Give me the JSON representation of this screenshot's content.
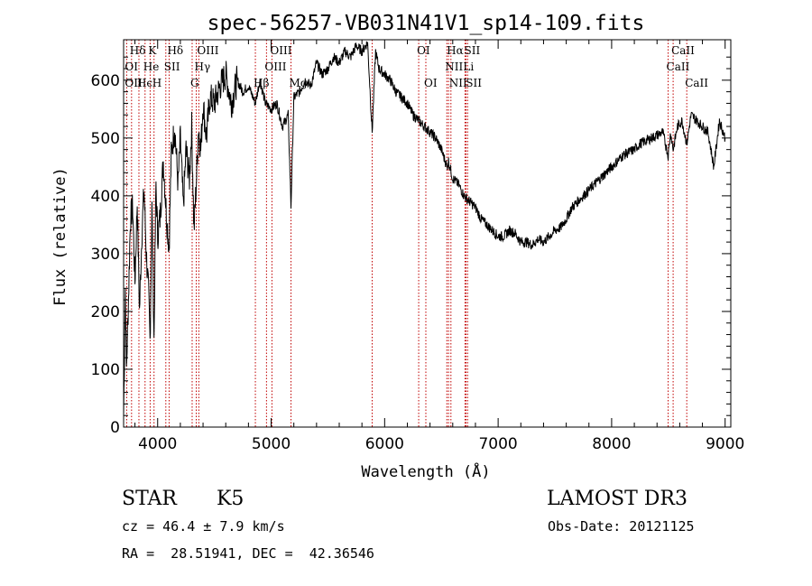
{
  "chart_data": {
    "type": "line",
    "title": "spec-56257-VB031N41V1_sp14-109.fits",
    "xlabel": "Wavelength (Å)",
    "ylabel": "Flux (relative)",
    "xlim": [
      3700,
      9050
    ],
    "ylim": [
      0,
      670
    ],
    "x_ticks": [
      4000,
      5000,
      6000,
      7000,
      8000,
      9000
    ],
    "y_ticks": [
      0,
      100,
      200,
      300,
      400,
      500,
      600
    ],
    "line_color": "#000000",
    "marker_color": "#c00000",
    "spectrum": [
      [
        3700,
        20
      ],
      [
        3715,
        240
      ],
      [
        3725,
        100
      ],
      [
        3740,
        200
      ],
      [
        3760,
        360
      ],
      [
        3780,
        380
      ],
      [
        3800,
        250
      ],
      [
        3820,
        390
      ],
      [
        3840,
        200
      ],
      [
        3860,
        330
      ],
      [
        3880,
        410
      ],
      [
        3900,
        300
      ],
      [
        3920,
        230
      ],
      [
        3933,
        150
      ],
      [
        3950,
        380
      ],
      [
        3968,
        150
      ],
      [
        3985,
        420
      ],
      [
        4000,
        330
      ],
      [
        4020,
        360
      ],
      [
        4050,
        460
      ],
      [
        4080,
        360
      ],
      [
        4101,
        310
      ],
      [
        4120,
        470
      ],
      [
        4150,
        520
      ],
      [
        4180,
        420
      ],
      [
        4200,
        500
      ],
      [
        4226,
        380
      ],
      [
        4250,
        480
      ],
      [
        4280,
        430
      ],
      [
        4300,
        520
      ],
      [
        4320,
        340
      ],
      [
        4340,
        420
      ],
      [
        4360,
        520
      ],
      [
        4380,
        480
      ],
      [
        4400,
        560
      ],
      [
        4430,
        500
      ],
      [
        4460,
        570
      ],
      [
        4500,
        560
      ],
      [
        4550,
        590
      ],
      [
        4600,
        610
      ],
      [
        4650,
        560
      ],
      [
        4700,
        600
      ],
      [
        4750,
        580
      ],
      [
        4800,
        590
      ],
      [
        4861,
        560
      ],
      [
        4900,
        600
      ],
      [
        4950,
        560
      ],
      [
        5000,
        550
      ],
      [
        5050,
        560
      ],
      [
        5100,
        520
      ],
      [
        5150,
        540
      ],
      [
        5175,
        380
      ],
      [
        5200,
        570
      ],
      [
        5250,
        580
      ],
      [
        5300,
        600
      ],
      [
        5350,
        590
      ],
      [
        5400,
        630
      ],
      [
        5450,
        610
      ],
      [
        5500,
        620
      ],
      [
        5550,
        640
      ],
      [
        5600,
        630
      ],
      [
        5650,
        650
      ],
      [
        5700,
        640
      ],
      [
        5750,
        660
      ],
      [
        5800,
        650
      ],
      [
        5850,
        665
      ],
      [
        5890,
        510
      ],
      [
        5920,
        650
      ],
      [
        5950,
        620
      ],
      [
        6000,
        610
      ],
      [
        6050,
        600
      ],
      [
        6100,
        580
      ],
      [
        6150,
        570
      ],
      [
        6200,
        560
      ],
      [
        6250,
        540
      ],
      [
        6300,
        530
      ],
      [
        6350,
        520
      ],
      [
        6400,
        510
      ],
      [
        6450,
        500
      ],
      [
        6500,
        480
      ],
      [
        6550,
        450
      ],
      [
        6563,
        460
      ],
      [
        6600,
        430
      ],
      [
        6650,
        420
      ],
      [
        6700,
        400
      ],
      [
        6750,
        390
      ],
      [
        6800,
        380
      ],
      [
        6850,
        360
      ],
      [
        6900,
        350
      ],
      [
        6950,
        340
      ],
      [
        7000,
        330
      ],
      [
        7050,
        330
      ],
      [
        7100,
        340
      ],
      [
        7150,
        335
      ],
      [
        7200,
        320
      ],
      [
        7250,
        320
      ],
      [
        7300,
        315
      ],
      [
        7350,
        325
      ],
      [
        7400,
        320
      ],
      [
        7450,
        330
      ],
      [
        7500,
        340
      ],
      [
        7550,
        345
      ],
      [
        7600,
        360
      ],
      [
        7650,
        380
      ],
      [
        7700,
        390
      ],
      [
        7750,
        400
      ],
      [
        7800,
        410
      ],
      [
        7850,
        420
      ],
      [
        7900,
        430
      ],
      [
        7950,
        440
      ],
      [
        8000,
        450
      ],
      [
        8050,
        460
      ],
      [
        8100,
        470
      ],
      [
        8150,
        475
      ],
      [
        8200,
        480
      ],
      [
        8250,
        490
      ],
      [
        8300,
        495
      ],
      [
        8350,
        500
      ],
      [
        8400,
        505
      ],
      [
        8450,
        510
      ],
      [
        8498,
        470
      ],
      [
        8520,
        510
      ],
      [
        8542,
        480
      ],
      [
        8580,
        520
      ],
      [
        8620,
        530
      ],
      [
        8662,
        490
      ],
      [
        8700,
        540
      ],
      [
        8750,
        530
      ],
      [
        8800,
        520
      ],
      [
        8850,
        510
      ],
      [
        8900,
        450
      ],
      [
        8950,
        530
      ],
      [
        9000,
        500
      ]
    ],
    "lines_top": [
      {
        "label": "Hδ",
        "wl": 3770,
        "row": 0
      },
      {
        "label": "K",
        "wl": 3934,
        "row": 0
      },
      {
        "label": "Hδ",
        "wl": 4101,
        "row": 0
      },
      {
        "label": "OIII",
        "wl": 4363,
        "row": 0
      },
      {
        "label": "OIII",
        "wl": 5007,
        "row": 0
      },
      {
        "label": "OI",
        "wl": 6300,
        "row": 0
      },
      {
        "label": "Hα",
        "wl": 6563,
        "row": 0
      },
      {
        "label": "SII",
        "wl": 6717,
        "row": 0
      },
      {
        "label": "CaII",
        "wl": 8542,
        "row": 0
      },
      {
        "label": "OI",
        "wl": 3727,
        "row": 1
      },
      {
        "label": "He",
        "wl": 3889,
        "row": 1
      },
      {
        "label": "SII",
        "wl": 4072,
        "row": 1
      },
      {
        "label": "Hγ",
        "wl": 4340,
        "row": 1
      },
      {
        "label": "OIII",
        "wl": 4959,
        "row": 1
      },
      {
        "label": "NII",
        "wl": 6548,
        "row": 1
      },
      {
        "label": "Li",
        "wl": 6708,
        "row": 1
      },
      {
        "label": "CaII",
        "wl": 8498,
        "row": 1
      },
      {
        "label": "OII",
        "wl": 3727,
        "row": 2
      },
      {
        "label": "Hϵ",
        "wl": 3835,
        "row": 2
      },
      {
        "label": "H",
        "wl": 3968,
        "row": 2
      },
      {
        "label": "G",
        "wl": 4304,
        "row": 2
      },
      {
        "label": "Hβ",
        "wl": 4861,
        "row": 2
      },
      {
        "label": "Mg",
        "wl": 5175,
        "row": 2
      },
      {
        "label": "OI",
        "wl": 6363,
        "row": 2
      },
      {
        "label": "NII",
        "wl": 6584,
        "row": 2
      },
      {
        "label": "SII",
        "wl": 6731,
        "row": 2
      },
      {
        "label": "CaII",
        "wl": 8662,
        "row": 2
      }
    ],
    "line_markers": [
      3727,
      3770,
      3835,
      3889,
      3934,
      3968,
      4072,
      4101,
      4304,
      4340,
      4363,
      4861,
      4959,
      5007,
      5175,
      5890,
      6300,
      6363,
      6548,
      6563,
      6584,
      6708,
      6717,
      6731,
      8498,
      8542,
      8662
    ]
  },
  "info": {
    "obj_class": "STAR",
    "subclass": "K5",
    "survey": "LAMOST DR3",
    "cz": "cz = 46.4 ± 7.9 km/s",
    "obs_date": "Obs-Date: 20121125",
    "coords": "RA =  28.51941, DEC =  42.36546"
  }
}
